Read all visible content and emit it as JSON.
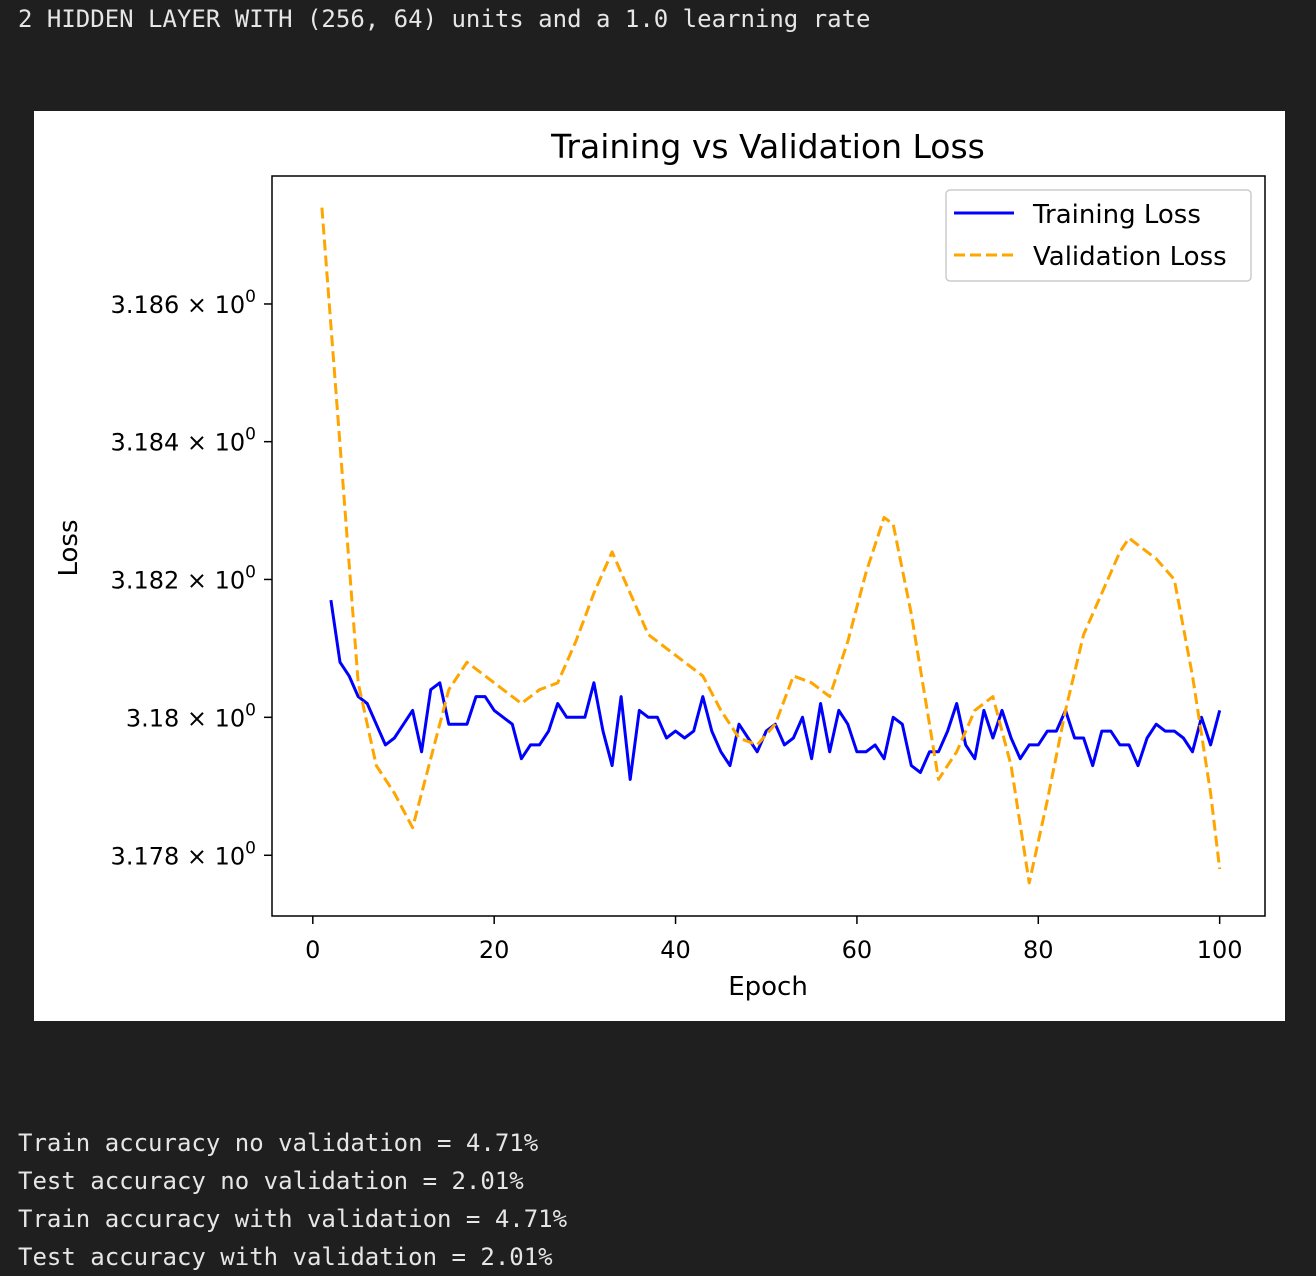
{
  "cell_output": {
    "header_line": "2 HIDDEN LAYER WITH (256, 64) units and a 1.0 learning rate",
    "results": [
      "Train accuracy no validation = 4.71%",
      "Test accuracy no validation = 2.01%",
      "Train accuracy with validation = 4.71%",
      "Test accuracy with validation = 2.01%"
    ]
  },
  "chart_data": {
    "type": "line",
    "title": "Training vs Validation Loss",
    "xlabel": "Epoch",
    "ylabel": "Loss",
    "xlim": [
      -4.5,
      105
    ],
    "ylim": [
      3.17712,
      3.18786
    ],
    "y_scale": "log",
    "xticks": [
      0,
      20,
      40,
      60,
      80,
      100
    ],
    "yticks": [
      {
        "value": 3.186,
        "label": "3.186 × 10",
        "exp": "0"
      },
      {
        "value": 3.184,
        "label": "3.184 × 10",
        "exp": "0"
      },
      {
        "value": 3.182,
        "label": "3.182 × 10",
        "exp": "0"
      },
      {
        "value": 3.18,
        "label": "3.18 × 10",
        "exp": "0"
      },
      {
        "value": 3.178,
        "label": "3.178 × 10",
        "exp": "0"
      }
    ],
    "grid": false,
    "legend_position": "top-right",
    "series": [
      {
        "name": "Training Loss",
        "color": "#0000ff",
        "style": "solid",
        "x": [
          2,
          3,
          4,
          5,
          6,
          7,
          8,
          9,
          10,
          11,
          12,
          13,
          14,
          15,
          16,
          17,
          18,
          19,
          20,
          21,
          22,
          23,
          24,
          25,
          26,
          27,
          28,
          29,
          30,
          31,
          32,
          33,
          34,
          35,
          36,
          37,
          38,
          39,
          40,
          41,
          42,
          43,
          44,
          45,
          46,
          47,
          48,
          49,
          50,
          51,
          52,
          53,
          54,
          55,
          56,
          57,
          58,
          59,
          60,
          61,
          62,
          63,
          64,
          65,
          66,
          67,
          68,
          69,
          70,
          71,
          72,
          73,
          74,
          75,
          76,
          77,
          78,
          79,
          80,
          81,
          82,
          83,
          84,
          85,
          86,
          87,
          88,
          89,
          90,
          91,
          92,
          93,
          94,
          95,
          96,
          97,
          98,
          99,
          100
        ],
        "y": [
          3.1817,
          3.1808,
          3.1806,
          3.1803,
          3.1802,
          3.1799,
          3.1796,
          3.1797,
          3.1799,
          3.1801,
          3.1795,
          3.1804,
          3.1805,
          3.1799,
          3.1799,
          3.1799,
          3.1803,
          3.1803,
          3.1801,
          3.18,
          3.1799,
          3.1794,
          3.1796,
          3.1796,
          3.1798,
          3.1802,
          3.18,
          3.18,
          3.18,
          3.1805,
          3.1798,
          3.1793,
          3.1803,
          3.1791,
          3.1801,
          3.18,
          3.18,
          3.1797,
          3.1798,
          3.1797,
          3.1798,
          3.1803,
          3.1798,
          3.1795,
          3.1793,
          3.1799,
          3.1797,
          3.1795,
          3.1798,
          3.1799,
          3.1796,
          3.1797,
          3.18,
          3.1794,
          3.1802,
          3.1795,
          3.1801,
          3.1799,
          3.1795,
          3.1795,
          3.1796,
          3.1794,
          3.18,
          3.1799,
          3.1793,
          3.1792,
          3.1795,
          3.1795,
          3.1798,
          3.1802,
          3.1796,
          3.1794,
          3.1801,
          3.1797,
          3.1801,
          3.1797,
          3.1794,
          3.1796,
          3.1796,
          3.1798,
          3.1798,
          3.1801,
          3.1797,
          3.1797,
          3.1793,
          3.1798,
          3.1798,
          3.1796,
          3.1796,
          3.1793,
          3.1797,
          3.1799,
          3.1798,
          3.1798,
          3.1797,
          3.1795,
          3.18,
          3.1796,
          3.1801
        ]
      },
      {
        "name": "Validation Loss",
        "color": "#ffa500",
        "style": "dashed",
        "x": [
          1,
          5,
          7,
          9,
          11,
          13,
          15,
          17,
          19,
          21,
          23,
          25,
          27,
          29,
          31,
          33,
          35,
          37,
          39,
          41,
          43,
          45,
          47,
          49,
          51,
          53,
          55,
          57,
          59,
          61,
          63,
          64,
          66,
          68,
          69,
          71,
          73,
          75,
          77,
          79,
          81,
          83,
          85,
          87,
          89,
          90,
          91,
          93,
          95,
          97,
          99,
          100
        ],
        "y": [
          3.1874,
          3.1805,
          3.1793,
          3.1789,
          3.1784,
          3.1794,
          3.1804,
          3.1808,
          3.1806,
          3.1804,
          3.1802,
          3.1804,
          3.1805,
          3.1811,
          3.1818,
          3.1824,
          3.1818,
          3.1812,
          3.181,
          3.1808,
          3.1806,
          3.1801,
          3.1797,
          3.1796,
          3.1799,
          3.1806,
          3.1805,
          3.1803,
          3.1811,
          3.1821,
          3.1829,
          3.1828,
          3.1815,
          3.1799,
          3.1791,
          3.1795,
          3.1801,
          3.1803,
          3.1793,
          3.1776,
          3.1788,
          3.1801,
          3.1812,
          3.1818,
          3.1824,
          3.1826,
          3.1825,
          3.1823,
          3.182,
          3.1806,
          3.1789,
          3.1778
        ]
      }
    ]
  }
}
